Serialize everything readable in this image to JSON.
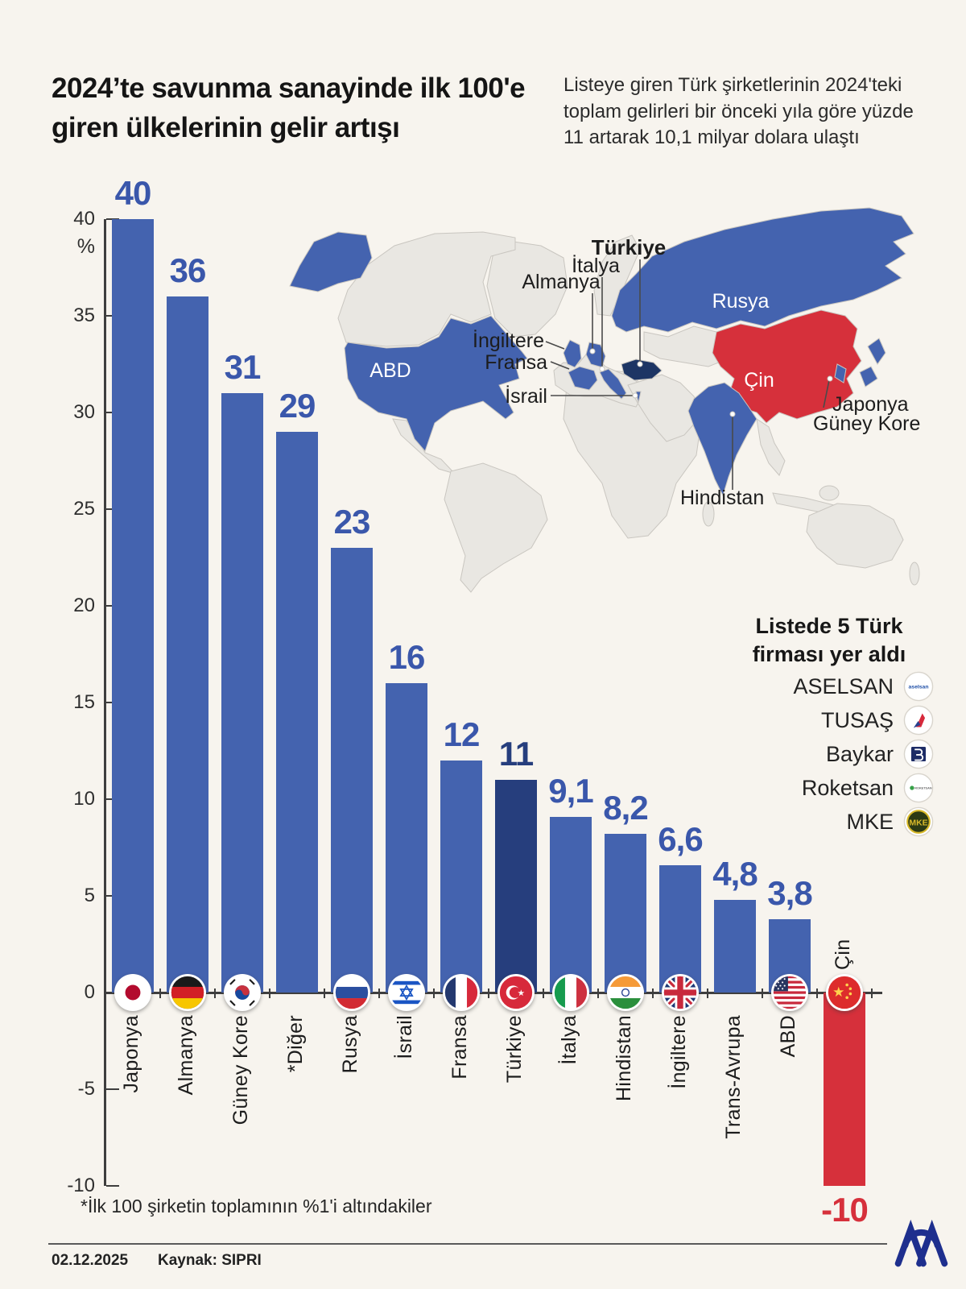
{
  "palette": {
    "background": "#f7f4ee",
    "bar_blue": "#4463af",
    "turkiye_bar": "#263e7d",
    "negative_red": "#d6303b",
    "value_text_blue": "#3a57ab",
    "map_land": "#e9e7e2",
    "turkey_map": "#1d3564",
    "agency_blue": "#1e2f8e"
  },
  "header": {
    "title": "2024’te savunma sanayinde ilk 100'e giren ülkelerinin gelir artışı",
    "subtitle": "Listeye giren Türk şirketlerinin 2024'teki toplam gelirleri bir önceki yıla göre yüzde 11 artarak 10,1 milyar dolara ulaştı"
  },
  "chart_data": {
    "type": "bar",
    "title": "2024’te savunma sanayinde ilk 100'e giren ülkelerinin gelir artışı",
    "unit": "%",
    "ylim": [
      -10,
      40
    ],
    "yticks": [
      40,
      35,
      30,
      25,
      20,
      15,
      10,
      5,
      0,
      -5,
      -10
    ],
    "grid": false,
    "categories": [
      "Japonya",
      "Almanya",
      "Güney Kore",
      "*Diğer",
      "Rusya",
      "İsrail",
      "Fransa",
      "Türkiye",
      "İtalya",
      "Hindistan",
      "İngiltere",
      "Trans-Avrupa",
      "ABD",
      "Çin"
    ],
    "values": [
      40,
      36,
      31,
      29,
      23,
      16,
      12,
      11,
      9.1,
      8.2,
      6.6,
      4.8,
      3.8,
      -10
    ],
    "bars": [
      {
        "label": "Japonya",
        "value": 40,
        "value_label": "40",
        "flag": "jp",
        "color": "default"
      },
      {
        "label": "Almanya",
        "value": 36,
        "value_label": "36",
        "flag": "de",
        "color": "default"
      },
      {
        "label": "Güney Kore",
        "value": 31,
        "value_label": "31",
        "flag": "kr",
        "color": "default"
      },
      {
        "label": "*Diğer",
        "value": 29,
        "value_label": "29",
        "flag": null,
        "color": "default"
      },
      {
        "label": "Rusya",
        "value": 23,
        "value_label": "23",
        "flag": "ru",
        "color": "default"
      },
      {
        "label": "İsrail",
        "value": 16,
        "value_label": "16",
        "flag": "il",
        "color": "default"
      },
      {
        "label": "Fransa",
        "value": 12,
        "value_label": "12",
        "flag": "fr",
        "color": "default"
      },
      {
        "label": "Türkiye",
        "value": 11,
        "value_label": "11",
        "flag": "tr",
        "color": "dark"
      },
      {
        "label": "İtalya",
        "value": 9.1,
        "value_label": "9,1",
        "flag": "it",
        "color": "default"
      },
      {
        "label": "Hindistan",
        "value": 8.2,
        "value_label": "8,2",
        "flag": "in",
        "color": "default"
      },
      {
        "label": "İngiltere",
        "value": 6.6,
        "value_label": "6,6",
        "flag": "gb",
        "color": "default"
      },
      {
        "label": "Trans-Avrupa",
        "value": 4.8,
        "value_label": "4,8",
        "flag": null,
        "color": "default"
      },
      {
        "label": "ABD",
        "value": 3.8,
        "value_label": "3,8",
        "flag": "us",
        "color": "default"
      },
      {
        "label": "Çin",
        "value": -10,
        "value_label": "-10",
        "flag": "cn",
        "color": "negative"
      }
    ]
  },
  "map": {
    "labels": [
      {
        "id": "abd",
        "text": "ABD"
      },
      {
        "id": "rusya",
        "text": "Rusya"
      },
      {
        "id": "cin",
        "text": "Çin"
      },
      {
        "id": "turkiye",
        "text": "Türkiye"
      },
      {
        "id": "italya",
        "text": "İtalya"
      },
      {
        "id": "almanya",
        "text": "Almanya"
      },
      {
        "id": "ingiltere",
        "text": "İngiltere"
      },
      {
        "id": "fransa",
        "text": "Fransa"
      },
      {
        "id": "israil",
        "text": "İsrail"
      },
      {
        "id": "japonya",
        "text": "Japonya"
      },
      {
        "id": "guney-kore",
        "text": "Güney Kore"
      },
      {
        "id": "hindistan",
        "text": "Hindistan"
      }
    ]
  },
  "legend": {
    "title_line1": "Listede 5 Türk",
    "title_line2": "firması yer aldı",
    "companies": [
      {
        "name": "ASELSAN",
        "logo": "aselsan"
      },
      {
        "name": "TUSAŞ",
        "logo": "tusas"
      },
      {
        "name": "Baykar",
        "logo": "baykar"
      },
      {
        "name": "Roketsan",
        "logo": "roketsan"
      },
      {
        "name": "MKE",
        "logo": "mke"
      }
    ]
  },
  "footnote": "*İlk 100 şirketin toplamının %1'i altındakiler",
  "footer": {
    "date": "02.12.2025",
    "source": "Kaynak: SIPRI",
    "agency": "AA"
  }
}
